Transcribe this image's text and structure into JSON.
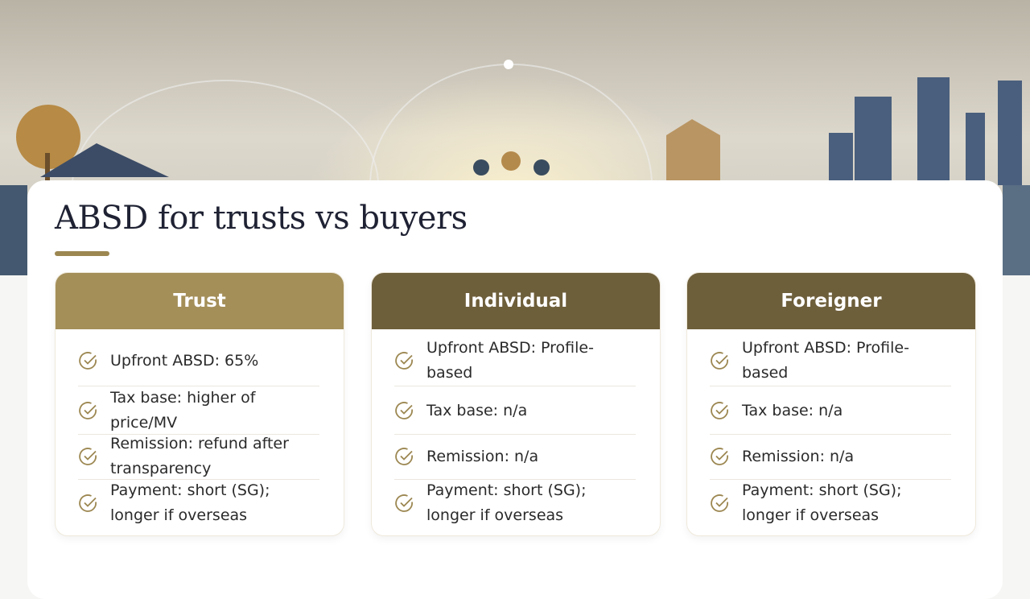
{
  "title": "ABSD for trusts vs buyers",
  "cards": [
    {
      "heading": "Trust",
      "rows": [
        "Upfront ABSD: 65%",
        "Tax base: higher of price/MV",
        "Remission: refund after transparency",
        "Payment: short (SG); longer if overseas"
      ]
    },
    {
      "heading": "Individual",
      "rows": [
        "Upfront ABSD: Profile-based",
        "Tax base: n/a",
        "Remission: n/a",
        "Payment: short (SG); longer if overseas"
      ]
    },
    {
      "heading": "Foreigner",
      "rows": [
        "Upfront ABSD: Profile-based",
        "Tax base: n/a",
        "Remission: n/a",
        "Payment: short (SG); longer if overseas"
      ]
    }
  ]
}
